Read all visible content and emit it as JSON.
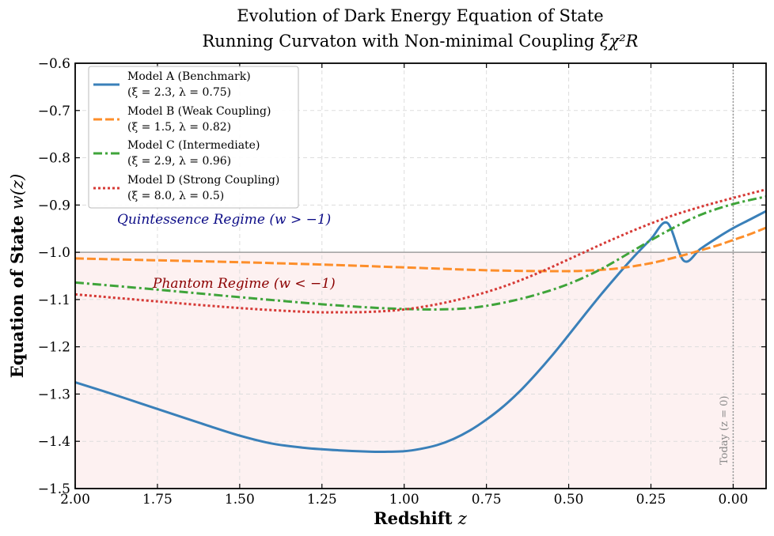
{
  "chart_data": {
    "type": "line",
    "title_line1": "Evolution of Dark Energy Equation of State",
    "title_line2_prefix": "Running Curvaton with Non-minimal Coupling ",
    "title_math": "ξχ²R",
    "xlabel": "Redshift",
    "xlabel_var": "z",
    "ylabel": "Equation of State",
    "ylabel_var": "w(z)",
    "xlim": [
      2.0,
      -0.1
    ],
    "ylim": [
      -1.5,
      -0.6
    ],
    "x_inverted": true,
    "grid": true,
    "xticks": [
      "2.00",
      "1.75",
      "1.50",
      "1.25",
      "1.00",
      "0.75",
      "0.50",
      "0.25",
      "0.00"
    ],
    "xtick_values": [
      2.0,
      1.75,
      1.5,
      1.25,
      1.0,
      0.75,
      0.5,
      0.25,
      0.0
    ],
    "yticks": [
      "−0.6",
      "−0.7",
      "−0.8",
      "−0.9",
      "−1.0",
      "−1.1",
      "−1.2",
      "−1.3",
      "−1.4",
      "−1.5"
    ],
    "ytick_values": [
      -0.6,
      -0.7,
      -0.8,
      -0.9,
      -1.0,
      -1.1,
      -1.2,
      -1.3,
      -1.4,
      -1.5
    ],
    "reference_line_w": -1.0,
    "today_marker_z": 0.0,
    "annotations": {
      "quintessence": "Quintessence Regime (w > −1)",
      "phantom": "Phantom Regime (w < −1)",
      "today": "Today (z = 0)"
    },
    "legend_position": "top-left",
    "series": [
      {
        "name": "Model A (Benchmark)",
        "params": "(ξ = 2.3, λ = 0.75)",
        "color": "#3a80b9",
        "dash": "solid",
        "x": [
          2.0,
          1.9,
          1.8,
          1.7,
          1.6,
          1.5,
          1.4,
          1.3,
          1.2,
          1.1,
          1.05,
          1.0,
          0.95,
          0.9,
          0.85,
          0.8,
          0.75,
          0.7,
          0.65,
          0.6,
          0.55,
          0.5,
          0.45,
          0.4,
          0.35,
          0.3,
          0.25,
          0.2,
          0.15,
          0.1,
          0.05,
          0.0,
          -0.05,
          -0.1
        ],
        "values": [
          -1.275,
          -1.297,
          -1.32,
          -1.343,
          -1.366,
          -1.388,
          -1.405,
          -1.414,
          -1.419,
          -1.422,
          -1.422,
          -1.421,
          -1.416,
          -1.408,
          -1.395,
          -1.377,
          -1.354,
          -1.327,
          -1.295,
          -1.258,
          -1.218,
          -1.175,
          -1.131,
          -1.088,
          -1.047,
          -1.008,
          -0.972,
          -0.938,
          -0.991,
          -0.958,
          -0.96,
          -0.951,
          -0.931,
          -0.913
        ]
      },
      {
        "name": "Model B (Weak Coupling)",
        "params": "(ξ = 1.5, λ = 0.82)",
        "color": "#fd8e2a",
        "dash": "dashed",
        "x": [
          2.0,
          1.75,
          1.5,
          1.25,
          1.0,
          0.75,
          0.55,
          0.45,
          0.35,
          0.25,
          0.15,
          0.1,
          0.05,
          0.0,
          -0.05,
          -0.1
        ],
        "values": [
          -1.013,
          -1.017,
          -1.021,
          -1.026,
          -1.032,
          -1.038,
          -1.04,
          -1.039,
          -1.034,
          -1.023,
          -1.006,
          -0.996,
          -0.986,
          -0.974,
          -0.962,
          -0.948
        ]
      },
      {
        "name": "Model C (Intermediate)",
        "params": "(ξ = 2.9, λ = 0.96)",
        "color": "#3fa43a",
        "dash": "dashdot",
        "x": [
          2.0,
          1.75,
          1.5,
          1.25,
          1.1,
          1.0,
          0.9,
          0.8,
          0.7,
          0.6,
          0.5,
          0.4,
          0.3,
          0.2,
          0.1,
          0.0,
          -0.1
        ],
        "values": [
          -1.064,
          -1.079,
          -1.095,
          -1.11,
          -1.117,
          -1.12,
          -1.121,
          -1.118,
          -1.107,
          -1.09,
          -1.067,
          -1.035,
          -0.995,
          -0.955,
          -0.921,
          -0.898,
          -0.882
        ]
      },
      {
        "name": "Model D (Strong Coupling)",
        "params": "(ξ = 8.0, λ = 0.5)",
        "color": "#d63a36",
        "dash": "dotted",
        "x": [
          2.0,
          1.75,
          1.5,
          1.3,
          1.2,
          1.1,
          1.0,
          0.9,
          0.8,
          0.7,
          0.6,
          0.5,
          0.4,
          0.3,
          0.2,
          0.1,
          0.0,
          -0.1
        ],
        "values": [
          -1.089,
          -1.104,
          -1.118,
          -1.126,
          -1.127,
          -1.126,
          -1.121,
          -1.11,
          -1.094,
          -1.073,
          -1.046,
          -1.015,
          -0.983,
          -0.953,
          -0.926,
          -0.904,
          -0.885,
          -0.867
        ]
      }
    ]
  }
}
